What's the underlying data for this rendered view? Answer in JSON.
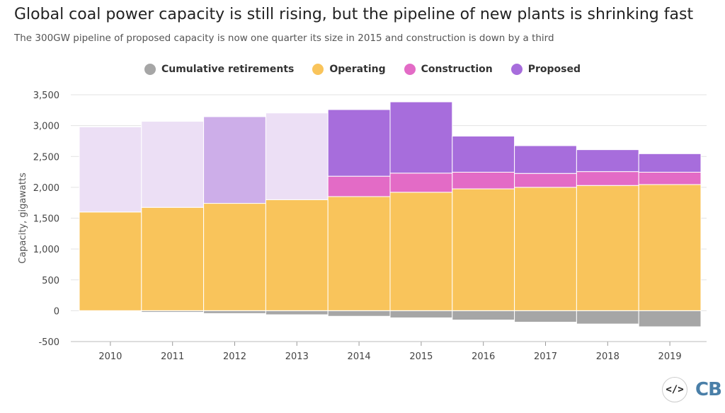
{
  "header": {
    "title": "Global coal power capacity is still rising, but the pipeline of new plants is shrinking fast",
    "subtitle": "The 300GW pipeline of proposed capacity is now one quarter its size in 2015 and construction is down by a third"
  },
  "footer": {
    "embed_icon_glyph": "</>",
    "brand_text": "CB"
  },
  "chart_data": {
    "type": "bar",
    "stacked": true,
    "title": "Global coal power capacity is still rising, but the pipeline of new plants is shrinking fast",
    "subtitle": "The 300GW pipeline of proposed capacity is now one quarter its size in 2015 and construction is down by a third",
    "xlabel": "",
    "ylabel": "Capacity, gigawatts",
    "ylim": [
      -500,
      3500
    ],
    "yticks": [
      -500,
      0,
      500,
      1000,
      1500,
      2000,
      2500,
      3000,
      3500
    ],
    "ytick_labels": [
      "-500",
      "0",
      "500",
      "1,000",
      "1,500",
      "2,000",
      "2,500",
      "3,000",
      "3,500"
    ],
    "grid": true,
    "legend_position": "top-center",
    "categories": [
      "2010",
      "2011",
      "2012",
      "2013",
      "2014",
      "2015",
      "2016",
      "2017",
      "2018",
      "2019"
    ],
    "series": [
      {
        "name": "Cumulative retirements",
        "color": "#a6a6a6",
        "values": [
          -10,
          -25,
          -45,
          -65,
          -90,
          -115,
          -150,
          -185,
          -215,
          -260
        ]
      },
      {
        "name": "Operating",
        "color": "#f9c45b",
        "values": [
          1600,
          1675,
          1740,
          1800,
          1850,
          1920,
          1975,
          2000,
          2030,
          2045
        ]
      },
      {
        "name": "Construction",
        "color": "#e36bc6",
        "values": [
          0,
          0,
          0,
          0,
          330,
          310,
          270,
          225,
          225,
          200
        ]
      },
      {
        "name": "Proposed",
        "color": "#a76ddc",
        "values": [
          1380,
          1395,
          1405,
          1405,
          1080,
          1155,
          585,
          450,
          355,
          300
        ]
      }
    ],
    "proposed_faded_years": [
      "2010",
      "2011",
      "2013"
    ],
    "proposed_medium_years": [
      "2012"
    ],
    "proposed_faded_color": "#ecdff5",
    "proposed_medium_color": "#cdaee9"
  }
}
